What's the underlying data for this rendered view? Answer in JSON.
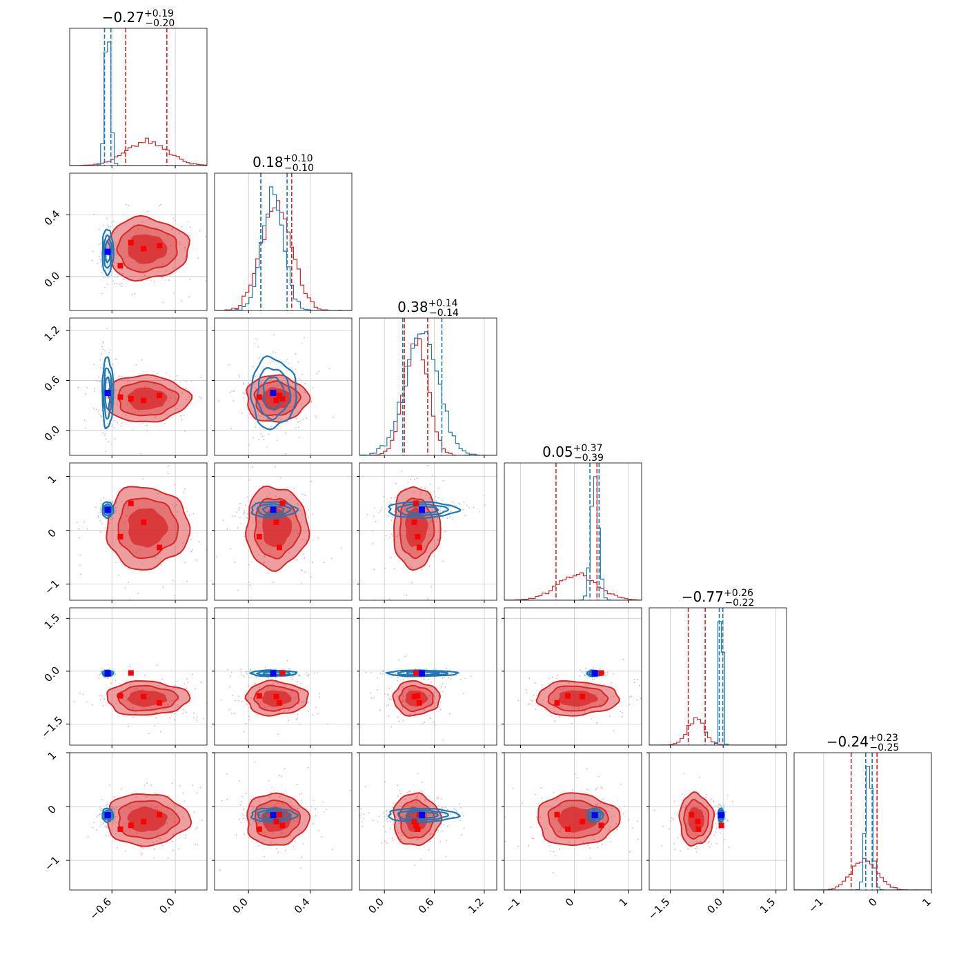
{
  "chart_data": {
    "type": "corner",
    "n_params": 6,
    "colors": {
      "red": "#d62728",
      "blue": "#1f77b4",
      "marker_red": "#ff0000",
      "marker_blue": "#0000ff",
      "grid": "#c8c8c8"
    },
    "diag_titles": [
      {
        "med": "−0.27",
        "up": "+0.19",
        "lo": "−0.20"
      },
      {
        "med": "0.18",
        "up": "+0.10",
        "lo": "−0.10"
      },
      {
        "med": "0.38",
        "up": "+0.14",
        "lo": "−0.14"
      },
      {
        "med": "0.05",
        "up": "+0.37",
        "lo": "−0.39"
      },
      {
        "med": "−0.77",
        "up": "+0.26",
        "lo": "−0.22"
      },
      {
        "med": "−0.24",
        "up": "+0.23",
        "lo": "−0.25"
      }
    ],
    "ranges": [
      [
        -1.0,
        0.3
      ],
      [
        -0.22,
        0.67
      ],
      [
        -0.3,
        1.35
      ],
      [
        -1.3,
        1.25
      ],
      [
        -2.1,
        1.8
      ],
      [
        -1.55,
        1.0
      ]
    ],
    "x_ticks": [
      [
        {
          "v": -0.6,
          "label": "−0.6"
        },
        {
          "v": 0.0,
          "label": "0.0"
        }
      ],
      [
        {
          "v": 0.0,
          "label": "0.0"
        },
        {
          "v": 0.4,
          "label": "0.4"
        }
      ],
      [
        {
          "v": 0.0,
          "label": "0.0"
        },
        {
          "v": 0.6,
          "label": "0.6"
        },
        {
          "v": 1.2,
          "label": "1.2"
        }
      ],
      [
        {
          "v": -1,
          "label": "−1"
        },
        {
          "v": 0,
          "label": "0"
        },
        {
          "v": 1,
          "label": "1"
        }
      ],
      [
        {
          "v": -1.5,
          "label": "−1.5"
        },
        {
          "v": 0.0,
          "label": "0.0"
        },
        {
          "v": 1.5,
          "label": "1.5"
        }
      ],
      [
        {
          "v": -1,
          "label": "−1"
        },
        {
          "v": 0,
          "label": "0"
        },
        {
          "v": 1,
          "label": "1"
        }
      ]
    ],
    "y_ticks": [
      [],
      [
        {
          "v": 0.0,
          "label": "0.0"
        },
        {
          "v": 0.4,
          "label": "0.4"
        }
      ],
      [
        {
          "v": 0.0,
          "label": "0.0"
        },
        {
          "v": 0.6,
          "label": "0.6"
        },
        {
          "v": 1.2,
          "label": "1.2"
        }
      ],
      [
        {
          "v": -1,
          "label": "−1"
        },
        {
          "v": 0,
          "label": "0"
        },
        {
          "v": 1,
          "label": "1"
        }
      ],
      [
        {
          "v": -1.5,
          "label": "−1.5"
        },
        {
          "v": 0.0,
          "label": "0.0"
        },
        {
          "v": 1.5,
          "label": "1.5"
        }
      ],
      [
        {
          "v": -1,
          "label": "−1"
        },
        {
          "v": 0,
          "label": "0"
        },
        {
          "v": 1,
          "label": "1"
        }
      ]
    ],
    "red_posterior": {
      "center": [
        -0.27,
        0.18,
        0.38,
        0.05,
        -0.77,
        -0.24
      ],
      "sigma": [
        0.195,
        0.1,
        0.14,
        0.38,
        0.24,
        0.24
      ],
      "quantiles": [
        [
          -0.47,
          -0.08
        ],
        [
          0.08,
          0.28
        ],
        [
          0.24,
          0.52
        ],
        [
          -0.34,
          0.42
        ],
        [
          -0.99,
          -0.51
        ],
        [
          -0.49,
          -0.01
        ]
      ]
    },
    "blue_posterior": {
      "center": [
        -0.64,
        0.16,
        0.45,
        0.38,
        -0.06,
        -0.16
      ],
      "sigma": [
        0.025,
        0.07,
        0.2,
        0.07,
        0.04,
        0.06
      ],
      "quantiles": [
        [
          -0.67,
          -0.61
        ],
        [
          0.08,
          0.25
        ],
        [
          0.22,
          0.69
        ],
        [
          0.29,
          0.46
        ],
        [
          -0.11,
          -0.01
        ],
        [
          -0.22,
          -0.1
        ]
      ]
    },
    "blue_truth": [
      -0.64,
      0.16,
      0.45,
      0.38,
      -0.06,
      -0.16
    ],
    "red_markers": [
      [
        -0.42,
        0.22,
        0.38,
        0.5,
        -0.05,
        -0.35
      ],
      [
        -0.3,
        0.18,
        0.36,
        0.15,
        -0.72,
        -0.28
      ],
      [
        -0.15,
        0.2,
        0.42,
        -0.32,
        -0.9,
        -0.15
      ],
      [
        -0.52,
        0.07,
        0.4,
        -0.12,
        -0.7,
        -0.42
      ]
    ]
  }
}
